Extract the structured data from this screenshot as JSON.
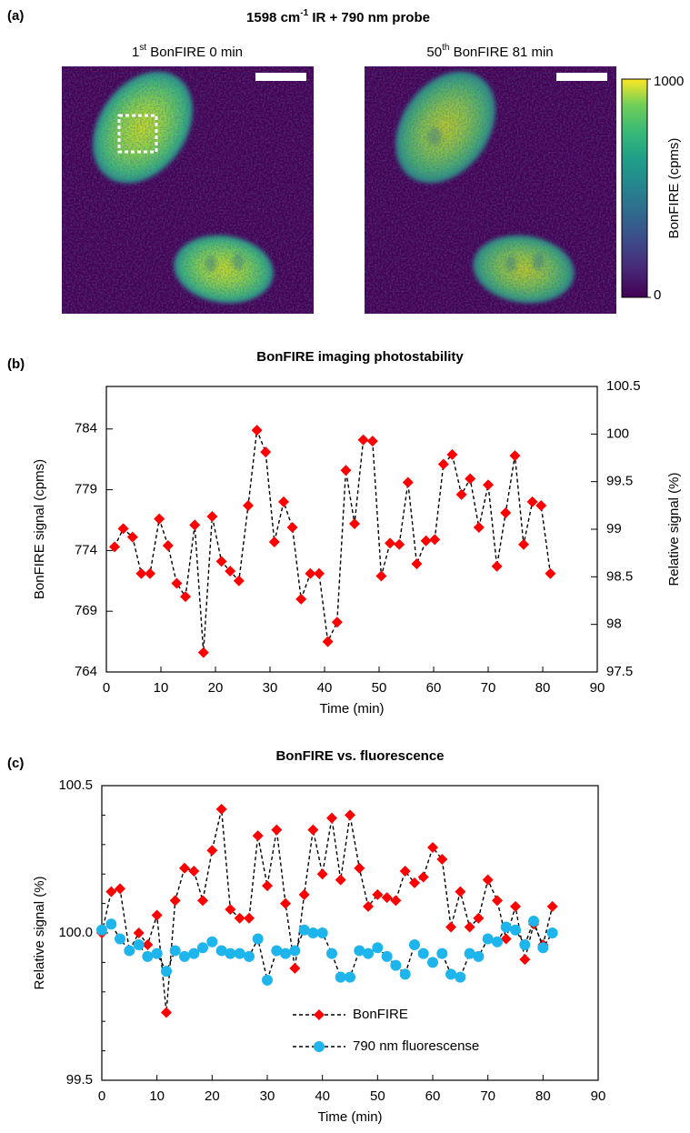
{
  "chart_data": [
    {
      "type": "image",
      "panel_label": "(a)",
      "title": {
        "text": "1598 cm",
        "sup": "-1",
        "rest": " IR + 790 nm probe"
      },
      "images": [
        {
          "text": "1",
          "sup": "st",
          "rest": " BonFIRE 0 min"
        },
        {
          "text": "50",
          "sup": "th",
          "rest": " BonFIRE 81 min"
        }
      ],
      "colorbar": {
        "label": "BonFIRE (cpms)",
        "lim": [
          0,
          1000
        ],
        "ticks": [
          0,
          1000
        ]
      }
    },
    {
      "type": "line",
      "panel_label": "(b)",
      "title": "BonFIRE imaging photostability",
      "xlabel": "Time (min)",
      "ylabel": "BonFIRE signal (cpms)",
      "y2label": "Relative signal (%)",
      "x": [
        1.5,
        3.1,
        4.8,
        6.4,
        8.0,
        9.7,
        11.3,
        12.9,
        14.5,
        16.2,
        17.8,
        19.4,
        21.1,
        22.7,
        24.3,
        26.0,
        27.6,
        29.2,
        30.8,
        32.5,
        34.1,
        35.7,
        37.4,
        39.0,
        40.6,
        42.3,
        43.9,
        45.5,
        47.1,
        48.8,
        50.4,
        52.0,
        53.7,
        55.3,
        56.9,
        58.6,
        60.2,
        61.8,
        63.4,
        65.1,
        66.7,
        68.3,
        70.0,
        71.6,
        73.2,
        74.9,
        76.5,
        78.1,
        79.7,
        81.4
      ],
      "series": [
        {
          "color": "#ff0000",
          "marker": "diamond",
          "values": [
            774.3,
            775.8,
            775.1,
            772.1,
            772.1,
            776.6,
            774.4,
            771.3,
            770.2,
            776.1,
            765.6,
            776.8,
            773.1,
            772.3,
            771.5,
            777.7,
            783.9,
            782.1,
            774.7,
            778.0,
            775.9,
            770.0,
            772.1,
            772.1,
            766.5,
            768.1,
            780.6,
            776.2,
            783.1,
            783.0,
            771.9,
            774.6,
            774.5,
            779.6,
            772.9,
            774.8,
            774.9,
            781.1,
            781.9,
            778.6,
            779.9,
            775.9,
            779.4,
            772.7,
            777.1,
            781.8,
            774.5,
            778.0,
            777.7,
            772.1
          ]
        }
      ],
      "line_color": "#000000",
      "line_style": "dashed",
      "xlim": [
        0,
        90
      ],
      "xticks": [
        0,
        10,
        20,
        30,
        40,
        50,
        60,
        70,
        80,
        90
      ],
      "ylim": [
        764,
        787.5
      ],
      "yticks": [
        764,
        769,
        774,
        779,
        784
      ],
      "y2lim": [
        97.5,
        100.5
      ],
      "y2ticks": [
        97.5,
        98,
        98.5,
        99,
        99.5,
        100,
        100.5
      ]
    },
    {
      "type": "line",
      "panel_label": "(c)",
      "title": "BonFIRE vs. fluorescence",
      "xlabel": "Time (min)",
      "ylabel": "Relative signal (%)",
      "x": [
        0,
        1.7,
        3.3,
        5,
        6.7,
        8.3,
        10,
        11.7,
        13.3,
        15,
        16.7,
        18.3,
        20,
        21.7,
        23.3,
        25,
        26.7,
        28.3,
        30,
        31.7,
        33.3,
        35,
        36.7,
        38.3,
        40,
        41.7,
        43.3,
        45,
        46.7,
        48.3,
        50,
        51.7,
        53.3,
        55,
        56.7,
        58.3,
        60,
        61.7,
        63.3,
        65,
        66.7,
        68.3,
        70,
        71.7,
        73.3,
        75,
        76.7,
        78.3,
        80,
        81.7
      ],
      "series": [
        {
          "name": "BonFIRE",
          "color": "#ff0000",
          "marker": "diamond",
          "values": [
            100.0,
            100.14,
            100.15,
            99.94,
            100.0,
            99.96,
            100.06,
            99.73,
            100.11,
            100.22,
            100.21,
            100.11,
            100.28,
            100.42,
            100.08,
            100.05,
            100.05,
            100.33,
            100.16,
            100.35,
            100.1,
            99.88,
            100.13,
            100.35,
            100.2,
            100.39,
            100.18,
            100.4,
            100.22,
            100.09,
            100.13,
            100.12,
            100.11,
            100.21,
            100.17,
            100.19,
            100.29,
            100.25,
            100.02,
            100.14,
            100.02,
            100.05,
            100.18,
            100.11,
            99.98,
            100.09,
            99.91,
            100.03,
            99.96,
            100.09
          ]
        },
        {
          "name": "790 nm fluorescense",
          "color": "#1eb4ec",
          "marker": "circle",
          "values": [
            100.01,
            100.03,
            99.98,
            99.94,
            99.96,
            99.92,
            99.93,
            99.87,
            99.94,
            99.92,
            99.93,
            99.95,
            99.97,
            99.94,
            99.93,
            99.93,
            99.92,
            99.98,
            99.84,
            99.94,
            99.93,
            99.94,
            100.01,
            100.0,
            100.0,
            99.93,
            99.85,
            99.85,
            99.94,
            99.93,
            99.95,
            99.92,
            99.89,
            99.86,
            99.96,
            99.93,
            99.9,
            99.93,
            99.86,
            99.85,
            99.93,
            99.92,
            99.98,
            99.97,
            100.02,
            100.01,
            99.96,
            100.04,
            99.95,
            100.0
          ]
        }
      ],
      "line_color": "#000000",
      "line_style": "dashed",
      "legend": "lower center",
      "xlim": [
        0,
        90
      ],
      "xticks": [
        0,
        10,
        20,
        30,
        40,
        50,
        60,
        70,
        80,
        90
      ],
      "ylim": [
        99.5,
        100.5
      ],
      "yticks": [
        99.5,
        {
          "value": 100,
          "label": "100.0"
        },
        100.5
      ],
      "yticks_minor": [
        99.6,
        99.7,
        99.8,
        99.9,
        100.1,
        100.2,
        100.3,
        100.4
      ]
    }
  ]
}
